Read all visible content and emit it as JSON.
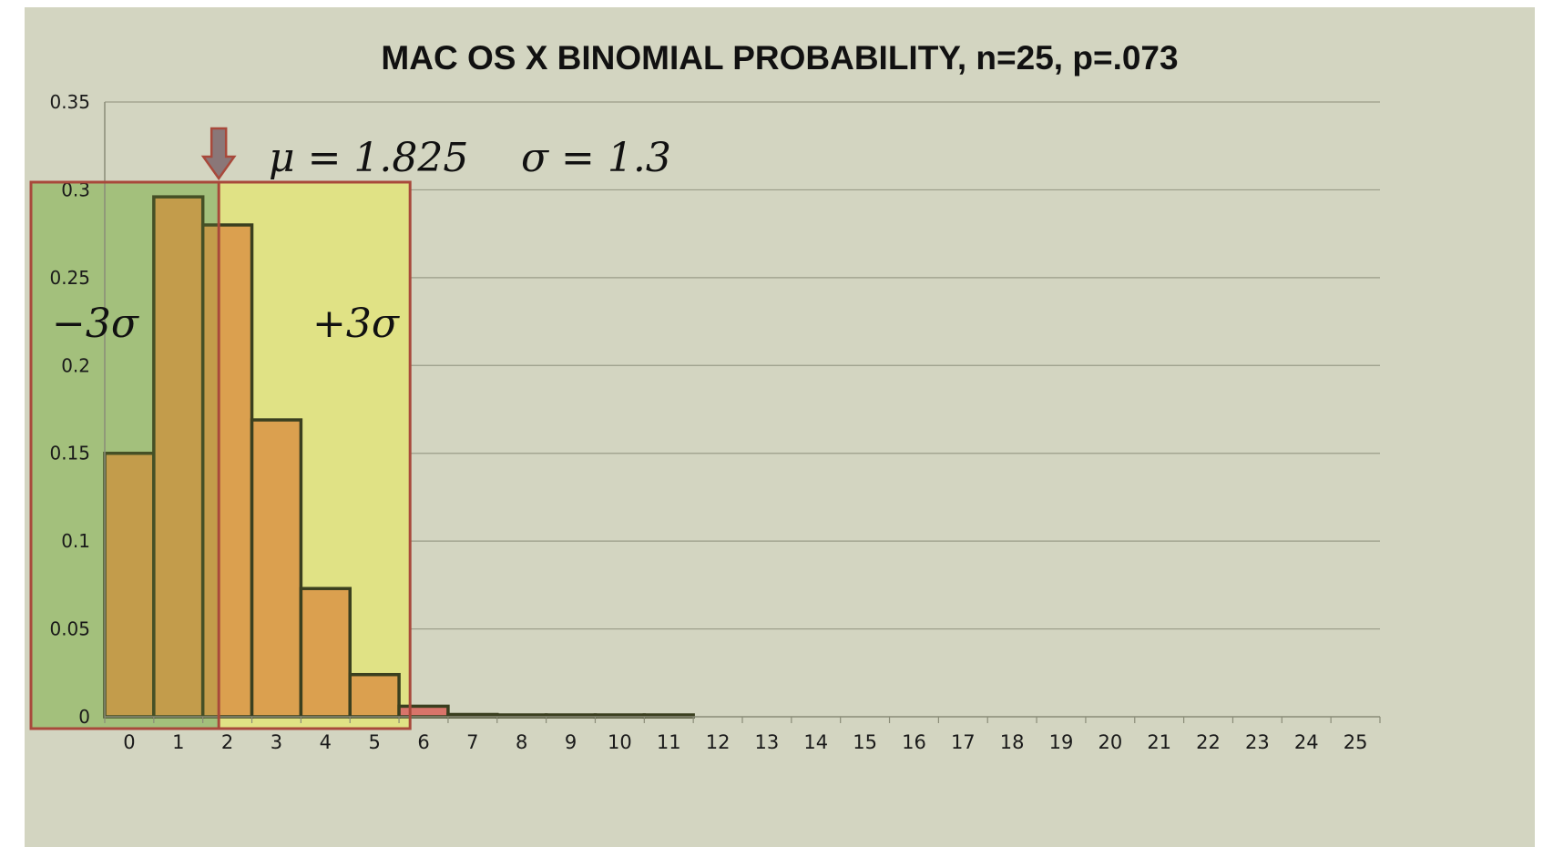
{
  "chart_data": {
    "type": "bar",
    "title": "MAC OS X BINOMIAL PROBABILITY, n=25, p=.073",
    "xlabel": "",
    "ylabel": "",
    "ylim": [
      0,
      0.35
    ],
    "y_ticks": [
      "0",
      "0.05",
      "0.1",
      "0.15",
      "0.2",
      "0.25",
      "0.3",
      "0.35"
    ],
    "categories": [
      "0",
      "1",
      "2",
      "3",
      "4",
      "5",
      "6",
      "7",
      "8",
      "9",
      "10",
      "11",
      "12",
      "13",
      "14",
      "15",
      "16",
      "17",
      "18",
      "19",
      "20",
      "21",
      "22",
      "23",
      "24",
      "25"
    ],
    "values": [
      0.15,
      0.296,
      0.28,
      0.169,
      0.073,
      0.024,
      0.006,
      0.0013,
      0.0002,
      3e-05,
      4e-06,
      4e-07,
      0,
      0,
      0,
      0,
      0,
      0,
      0,
      0,
      0,
      0,
      0,
      0,
      0,
      0
    ],
    "grid": true,
    "legend": "none",
    "colors": {
      "background": "#d3d5c1",
      "bar_fill": "#dba04f",
      "bar_outline": "#3a3f1f",
      "minus_region": "#b3cf8e",
      "plus_region": "#e0e285",
      "region_border": "#a8493b",
      "tail_bar": "#d9746a",
      "arrow": "#8a7778"
    },
    "annotations": {
      "mu_label": "μ = 1.825",
      "sigma_label": "σ = 1.3",
      "minus_label": "−3σ",
      "plus_label": "+3σ",
      "mu_value": 1.825,
      "sigma_value": 1.3,
      "minus_bound": -2.075,
      "plus_bound": 5.725
    }
  }
}
